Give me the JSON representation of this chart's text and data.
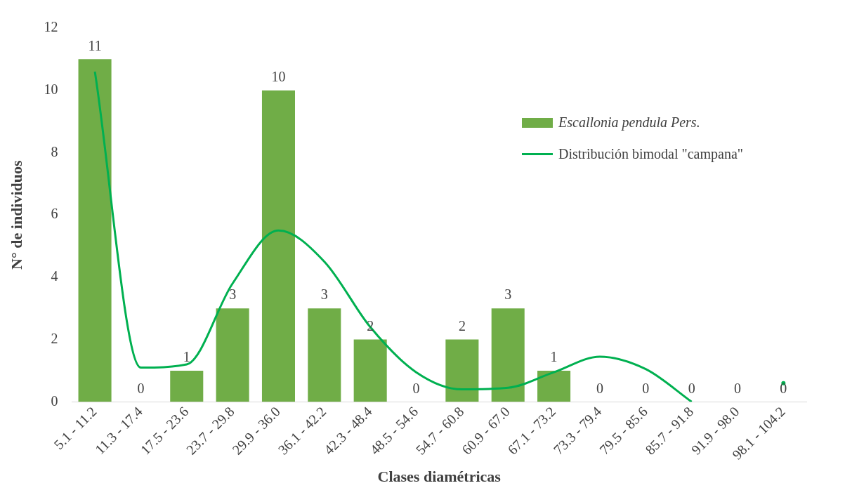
{
  "chart_data": {
    "type": "bar",
    "xlabel": "Clases diamétricas",
    "ylabel": "N° de individuos",
    "categories": [
      "5.1 - 11.2",
      "11.3 - 17.4",
      "17.5 - 23.6",
      "23.7 - 29.8",
      "29.9 - 36.0",
      "36.1 - 42.2",
      "42.3 - 48.4",
      "48.5 - 54.6",
      "54.7 - 60.8",
      "60.9 - 67.0",
      "67.1 - 73.2",
      "73.3 - 79.4",
      "79.5 - 85.6",
      "85.7 - 91.8",
      "91.9 - 98.0",
      "98.1 - 104.2"
    ],
    "series": [
      {
        "name": "Escallonia pendula Pers.",
        "color": "#70ad47",
        "values": [
          11,
          0,
          1,
          3,
          10,
          3,
          2,
          0,
          2,
          3,
          1,
          0,
          0,
          0,
          0,
          0
        ],
        "value_labels": [
          "11",
          "0",
          "1",
          "3",
          "10",
          "3",
          "2",
          "0",
          "2",
          "3",
          "1",
          "0",
          "0",
          "0",
          "0",
          "0"
        ]
      },
      {
        "name": "Distribución bimodal \"campana\"",
        "type": "line",
        "color": "#00b050",
        "values": [
          10.6,
          1.1,
          1.2,
          3.8,
          5.5,
          4.5,
          2.4,
          0.95,
          0.4,
          0.45,
          0.95,
          1.45,
          1.05,
          0,
          null,
          0.6
        ]
      }
    ],
    "ylim": [
      0,
      12
    ],
    "yticks": [
      0,
      2,
      4,
      6,
      8,
      10,
      12
    ],
    "grid": false,
    "legend": "top right",
    "marker": "none"
  }
}
